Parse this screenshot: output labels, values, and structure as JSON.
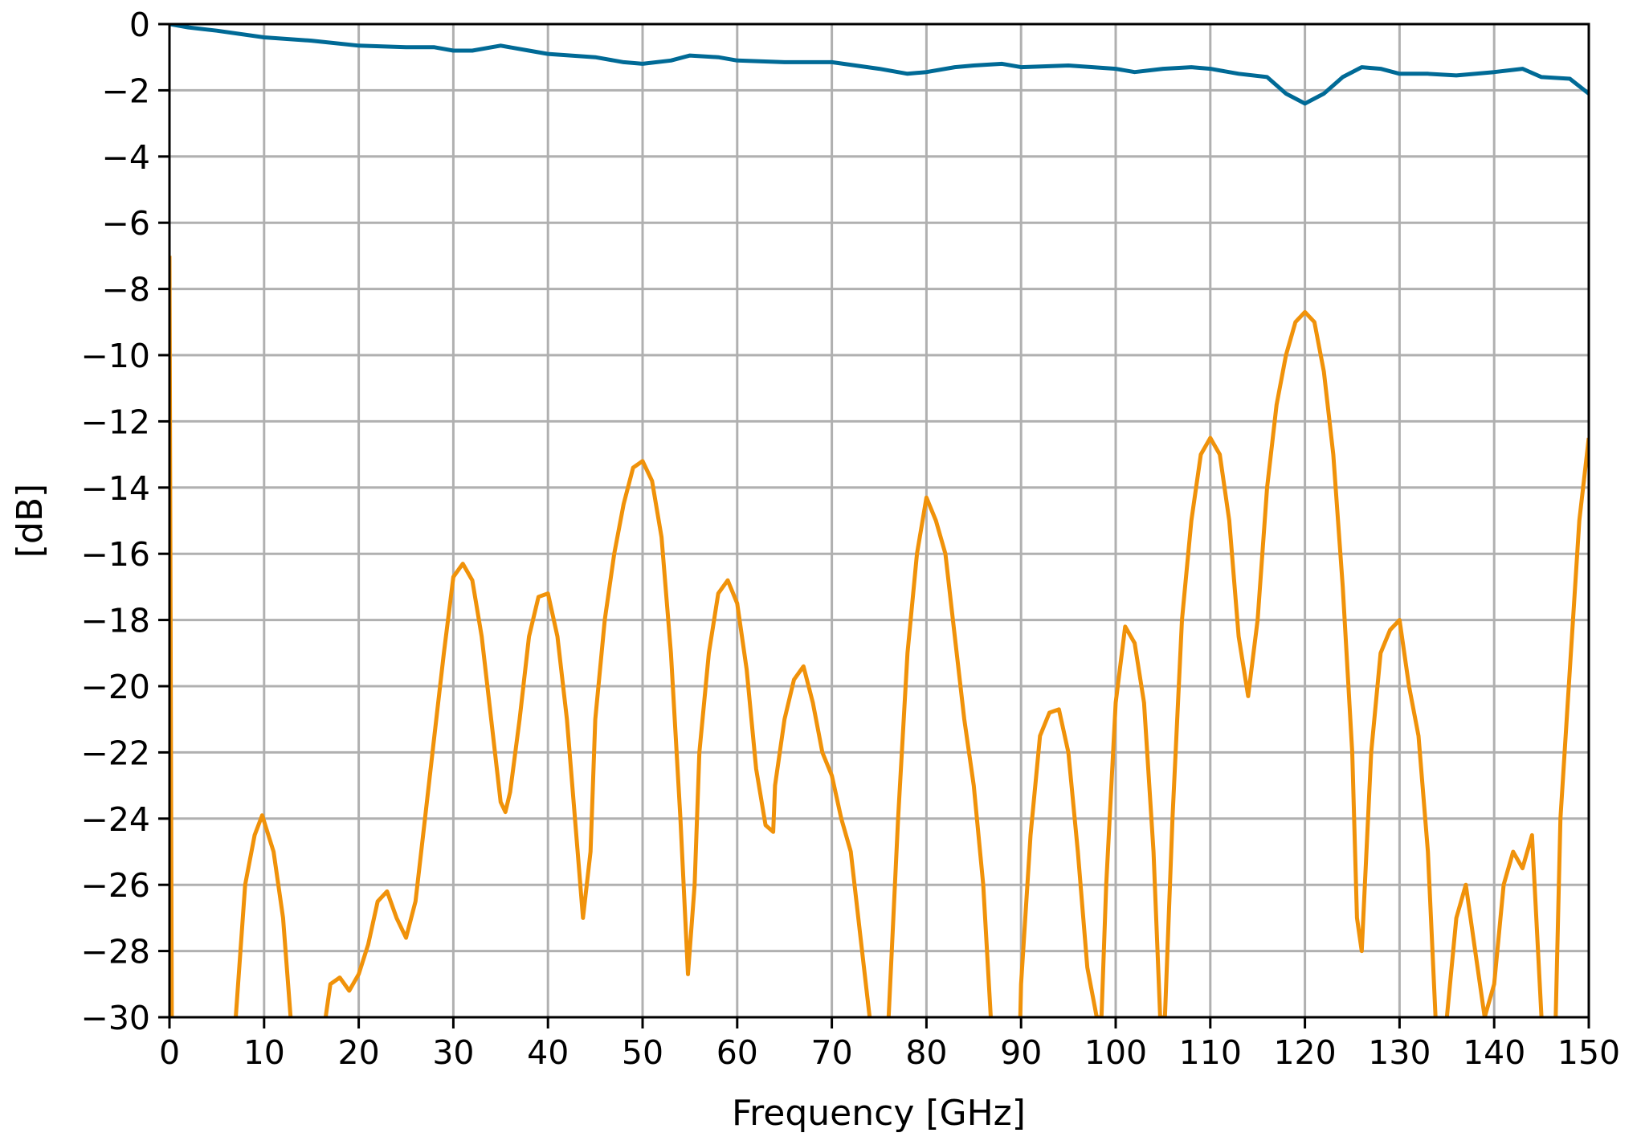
{
  "chart_data": {
    "type": "line",
    "title": "",
    "xlabel": "Frequency [GHz]",
    "ylabel": "[dB]",
    "xlim": [
      0,
      150
    ],
    "ylim": [
      -30,
      0
    ],
    "xticks": [
      0,
      10,
      20,
      30,
      40,
      50,
      60,
      70,
      80,
      90,
      100,
      110,
      120,
      130,
      140,
      150
    ],
    "yticks": [
      0,
      -2,
      -4,
      -6,
      -8,
      -10,
      -12,
      -14,
      -16,
      -18,
      -20,
      -22,
      -24,
      -26,
      -28,
      -30
    ],
    "grid": true,
    "legend": "none",
    "series": [
      {
        "color": "#006a96",
        "x": [
          0,
          2,
          5,
          10,
          15,
          20,
          25,
          28,
          30,
          32,
          35,
          38,
          40,
          45,
          48,
          50,
          53,
          55,
          58,
          60,
          65,
          70,
          75,
          78,
          80,
          83,
          85,
          88,
          90,
          95,
          100,
          102,
          105,
          108,
          110,
          113,
          116,
          118,
          120,
          122,
          124,
          126,
          128,
          130,
          133,
          136,
          140,
          143,
          145,
          148,
          150
        ],
        "y": [
          0,
          -0.1,
          -0.2,
          -0.4,
          -0.5,
          -0.65,
          -0.7,
          -0.7,
          -0.8,
          -0.8,
          -0.65,
          -0.8,
          -0.9,
          -1.0,
          -1.15,
          -1.2,
          -1.1,
          -0.95,
          -1.0,
          -1.1,
          -1.15,
          -1.15,
          -1.35,
          -1.5,
          -1.45,
          -1.3,
          -1.25,
          -1.2,
          -1.3,
          -1.25,
          -1.35,
          -1.45,
          -1.35,
          -1.3,
          -1.35,
          -1.5,
          -1.6,
          -2.1,
          -2.4,
          -2.1,
          -1.6,
          -1.3,
          -1.35,
          -1.5,
          -1.5,
          -1.55,
          -1.45,
          -1.35,
          -1.6,
          -1.65,
          -2.1
        ]
      },
      {
        "color": "#f0920a",
        "x": [
          0,
          0.3,
          6.5,
          7,
          8,
          9,
          9.8,
          11,
          12,
          12.8,
          13.2,
          16,
          16.5,
          17,
          18,
          19,
          20,
          21,
          22,
          23,
          24,
          25,
          26,
          27,
          28,
          29,
          30,
          31,
          32,
          33,
          34,
          35,
          35.5,
          36,
          37,
          38,
          39,
          40,
          41,
          42,
          43,
          43.7,
          44.5,
          45,
          46,
          47,
          48,
          49,
          50,
          51,
          52,
          53,
          54,
          54.8,
          55.5,
          56,
          57,
          58,
          59,
          60,
          61,
          62,
          63,
          63.8,
          64,
          65,
          66,
          67,
          68,
          69,
          70,
          71,
          72,
          73,
          74,
          74.5,
          75.5,
          76,
          77,
          78,
          79,
          80,
          81,
          82,
          83,
          84,
          85,
          86,
          86.8,
          87.2,
          89.5,
          90,
          91,
          92,
          93,
          94,
          95,
          96,
          97,
          98,
          98.5,
          99,
          100,
          101,
          102,
          103,
          104,
          104.7,
          105.2,
          106,
          107,
          108,
          109,
          110,
          111,
          112,
          113,
          114,
          115,
          116,
          117,
          118,
          119,
          120,
          121,
          122,
          123,
          124,
          125,
          125.5,
          126,
          127,
          128,
          129,
          130,
          131,
          132,
          133,
          133.8,
          134.2,
          135,
          136,
          137,
          138,
          139,
          140,
          141,
          142,
          143,
          144,
          145,
          146,
          146.5,
          147,
          148,
          149,
          150
        ],
        "y": [
          -7,
          -35,
          -35,
          -30,
          -26,
          -24.5,
          -23.9,
          -25,
          -27,
          -30,
          -35,
          -35,
          -30,
          -29,
          -28.8,
          -29.2,
          -28.7,
          -27.8,
          -26.5,
          -26.2,
          -27,
          -27.6,
          -26.5,
          -24,
          -21.5,
          -19,
          -16.7,
          -16.3,
          -16.8,
          -18.5,
          -21,
          -23.5,
          -23.8,
          -23.2,
          -21,
          -18.5,
          -17.3,
          -17.2,
          -18.5,
          -21,
          -24.5,
          -27,
          -25,
          -21,
          -18,
          -16,
          -14.5,
          -13.4,
          -13.2,
          -13.8,
          -15.5,
          -19,
          -24,
          -28.7,
          -26,
          -22,
          -19,
          -17.2,
          -16.8,
          -17.5,
          -19.5,
          -22.5,
          -24.2,
          -24.4,
          -23,
          -21,
          -19.8,
          -19.4,
          -20.5,
          -22,
          -22.7,
          -24,
          -25,
          -27.5,
          -30,
          -35,
          -35,
          -30,
          -24,
          -19,
          -16,
          -14.3,
          -15,
          -16,
          -18.5,
          -21,
          -23,
          -26,
          -30,
          -35,
          -35,
          -29,
          -24.5,
          -21.5,
          -20.8,
          -20.7,
          -22,
          -25,
          -28.5,
          -30,
          -30,
          -26,
          -20.5,
          -18.2,
          -18.7,
          -20.5,
          -25,
          -30,
          -30,
          -24,
          -18,
          -15,
          -13,
          -12.5,
          -13,
          -15,
          -18.5,
          -20.3,
          -18,
          -14,
          -11.5,
          -10,
          -9,
          -8.7,
          -9,
          -10.5,
          -13,
          -17,
          -22,
          -27,
          -28,
          -22,
          -19,
          -18.3,
          -18,
          -20,
          -21.5,
          -25,
          -30,
          -35,
          -30,
          -27,
          -26,
          -28,
          -30,
          -29,
          -26,
          -25,
          -25.5,
          -24.5,
          -30,
          -35,
          -30,
          -24,
          -19.5,
          -15,
          -12.5
        ]
      }
    ]
  }
}
